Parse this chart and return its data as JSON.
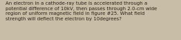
{
  "text": "An electron in a cathode-ray tube is accelerated through a\npotential difference of 10kV, then passes through 2.0-cm wide\nregion of uniform magnetic field in figure #25. What field\nstrength will deflect the electron by 10degrees?",
  "background_color": "#c8bda6",
  "text_color": "#2a2218",
  "font_size": 5.0,
  "fig_width": 2.62,
  "fig_height": 0.59,
  "dpi": 100
}
